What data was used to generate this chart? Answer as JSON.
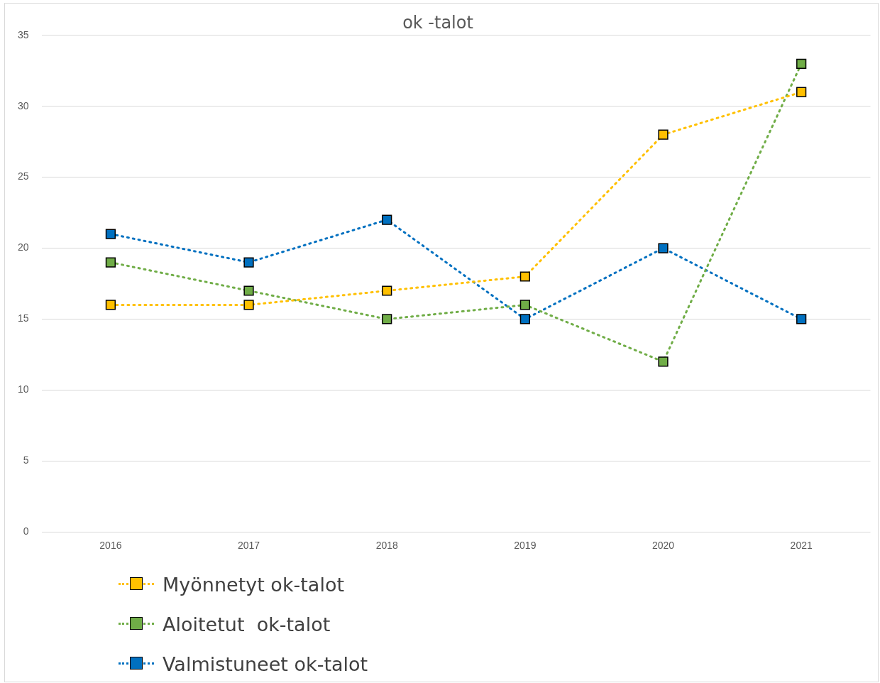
{
  "chart_data": {
    "type": "line",
    "title": "ok -talot",
    "categories": [
      "2016",
      "2017",
      "2018",
      "2019",
      "2020",
      "2021"
    ],
    "series": [
      {
        "name": "Myönnetyt ok-talot",
        "color": "#ffc000",
        "values": [
          16,
          16,
          17,
          18,
          28,
          31
        ]
      },
      {
        "name": "Aloitetut  ok-talot",
        "color": "#70ad47",
        "values": [
          19,
          17,
          15,
          16,
          12,
          33
        ]
      },
      {
        "name": "Valmistuneet ok-talot",
        "color": "#0070c0",
        "values": [
          21,
          19,
          22,
          15,
          20,
          15
        ]
      }
    ],
    "ylim": [
      0,
      35
    ],
    "yticks": [
      0,
      5,
      10,
      15,
      20,
      25,
      30,
      35
    ],
    "grid": "y",
    "legend": "bottom left",
    "marker": "square",
    "line_style": "dotted"
  }
}
